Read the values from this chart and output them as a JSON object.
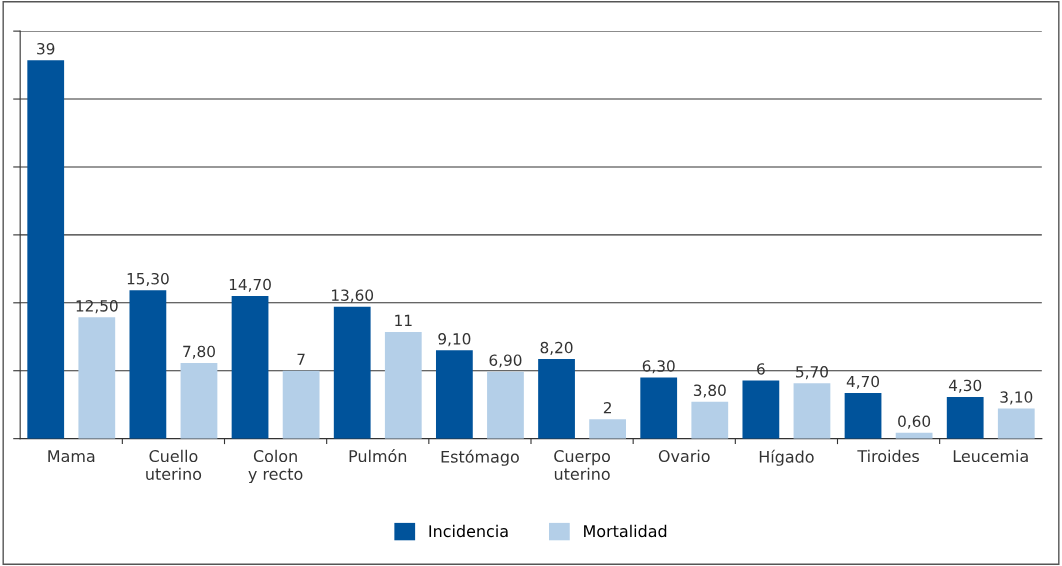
{
  "chart_data": {
    "type": "bar",
    "categories": [
      "Mama",
      "Cuello\nuterino",
      "Colon\ny recto",
      "Pulmón",
      "Estómago",
      "Cuerpo\nuterino",
      "Ovario",
      "Hígado",
      "Tiroides",
      "Leucemia"
    ],
    "series": [
      {
        "name": "Incidencia",
        "color": "#00539b",
        "values": [
          39,
          15.3,
          14.7,
          13.6,
          9.1,
          8.2,
          6.3,
          6,
          4.7,
          4.3
        ],
        "value_labels": [
          "39",
          "15,30",
          "14,70",
          "13,60",
          "9,10",
          "8,20",
          "6,30",
          "6",
          "4,70",
          "4,30"
        ]
      },
      {
        "name": "Mortalidad",
        "color": "#b4cfe8",
        "values": [
          12.5,
          7.8,
          7,
          11,
          6.9,
          2,
          3.8,
          5.7,
          0.6,
          3.1
        ],
        "value_labels": [
          "12,50",
          "7,80",
          "7",
          "11",
          "6,90",
          "2",
          "3,80",
          "5,70",
          "0,60",
          "3,10"
        ]
      }
    ],
    "ylim": [
      0,
      42
    ],
    "yticks": [
      {
        "value": 0,
        "label": null
      },
      {
        "value": 7,
        "label": null
      },
      {
        "value": 14,
        "label": null
      },
      {
        "value": 21,
        "label": null
      },
      {
        "value": 28,
        "label": null
      },
      {
        "value": 35,
        "label": null
      },
      {
        "value": 42,
        "label": null
      }
    ],
    "grid": "y",
    "legend": "bottom",
    "tick_labels": "x"
  }
}
